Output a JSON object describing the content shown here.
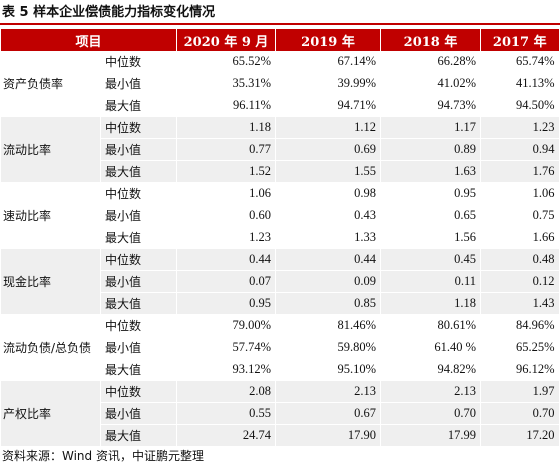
{
  "title": "表 5  样本企业偿债能力指标变化情况",
  "table": {
    "header": [
      "项目",
      "2020 年 9 月",
      "2019 年",
      "2018 年",
      "2017 年"
    ],
    "groups": [
      {
        "label": "资产负债率",
        "rows": [
          [
            "中位数",
            "65.52%",
            "67.14%",
            "66.28%",
            "65.74%"
          ],
          [
            "最小值",
            "35.31%",
            "39.99%",
            "41.02%",
            "41.13%"
          ],
          [
            "最大值",
            "96.11%",
            "94.71%",
            "94.73%",
            "94.50%"
          ]
        ]
      },
      {
        "label": "流动比率",
        "rows": [
          [
            "中位数",
            "1.18",
            "1.12",
            "1.17",
            "1.23"
          ],
          [
            "最小值",
            "0.77",
            "0.69",
            "0.89",
            "0.94"
          ],
          [
            "最大值",
            "1.52",
            "1.55",
            "1.63",
            "1.76"
          ]
        ]
      },
      {
        "label": "速动比率",
        "rows": [
          [
            "中位数",
            "1.06",
            "0.98",
            "0.95",
            "1.06"
          ],
          [
            "最小值",
            "0.60",
            "0.43",
            "0.65",
            "0.75"
          ],
          [
            "最大值",
            "1.23",
            "1.33",
            "1.56",
            "1.66"
          ]
        ]
      },
      {
        "label": "现金比率",
        "rows": [
          [
            "中位数",
            "0.44",
            "0.44",
            "0.45",
            "0.48"
          ],
          [
            "最小值",
            "0.07",
            "0.09",
            "0.11",
            "0.12"
          ],
          [
            "最大值",
            "0.95",
            "0.85",
            "1.18",
            "1.43"
          ]
        ]
      },
      {
        "label": "流动负债/总负债",
        "rows": [
          [
            "中位数",
            "79.00%",
            "81.46%",
            "80.61%",
            "84.96%"
          ],
          [
            "最小值",
            "57.74%",
            "59.80%",
            "61.40 %",
            "65.25%"
          ],
          [
            "最大值",
            "93.12%",
            "95.10%",
            "94.82%",
            "96.12%"
          ]
        ]
      },
      {
        "label": "产权比率",
        "rows": [
          [
            "中位数",
            "2.08",
            "2.13",
            "2.13",
            "1.97"
          ],
          [
            "最小值",
            "0.55",
            "0.67",
            "0.70",
            "0.70"
          ],
          [
            "最大值",
            "24.74",
            "17.90",
            "17.99",
            "17.20"
          ]
        ]
      }
    ]
  },
  "source": "资料来源：Wind 资讯，中证鹏元整理"
}
